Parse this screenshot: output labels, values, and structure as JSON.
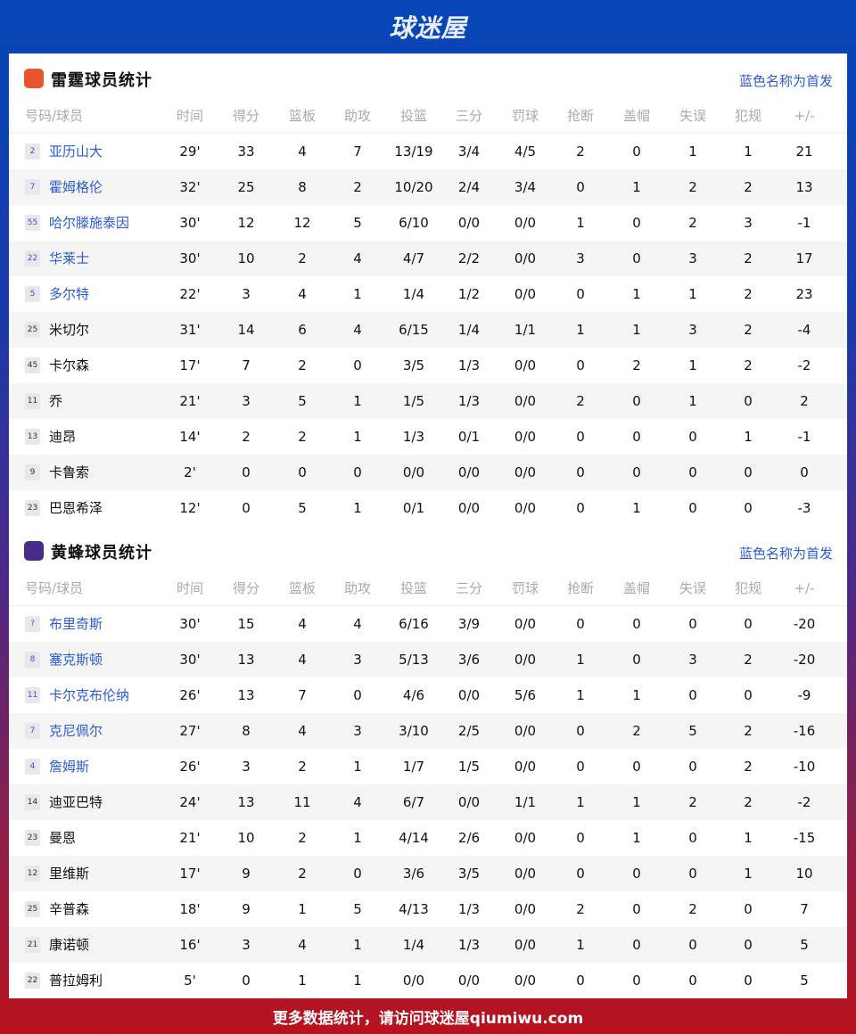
{
  "brand": "球迷屋",
  "footer": "更多数据统计，请访问球迷屋qiumiwu.com",
  "colors": {
    "starter": "#2a5ad8",
    "okc_logo": "#e8552a",
    "cha_logo": "#4a2a8a"
  },
  "columns": [
    "号码/球员",
    "时间",
    "得分",
    "篮板",
    "助攻",
    "投篮",
    "三分",
    "罚球",
    "抢断",
    "盖帽",
    "失误",
    "犯规",
    "+/-"
  ],
  "teams": [
    {
      "title": "雷霆球员统计",
      "note": "蓝色名称为首发",
      "logo": "OKC",
      "players": [
        {
          "no": "2",
          "name": "亚历山大",
          "starter": true,
          "stats": [
            "29'",
            "33",
            "4",
            "7",
            "13/19",
            "3/4",
            "4/5",
            "2",
            "0",
            "1",
            "1",
            "21"
          ]
        },
        {
          "no": "7",
          "name": "霍姆格伦",
          "starter": true,
          "stats": [
            "32'",
            "25",
            "8",
            "2",
            "10/20",
            "2/4",
            "3/4",
            "0",
            "1",
            "2",
            "2",
            "13"
          ]
        },
        {
          "no": "55",
          "name": "哈尔滕施泰因",
          "starter": true,
          "stats": [
            "30'",
            "12",
            "12",
            "5",
            "6/10",
            "0/0",
            "0/0",
            "1",
            "0",
            "2",
            "3",
            "-1"
          ]
        },
        {
          "no": "22",
          "name": "华莱士",
          "starter": true,
          "stats": [
            "30'",
            "10",
            "2",
            "4",
            "4/7",
            "2/2",
            "0/0",
            "3",
            "0",
            "3",
            "2",
            "17"
          ]
        },
        {
          "no": "5",
          "name": "多尔特",
          "starter": true,
          "stats": [
            "22'",
            "3",
            "4",
            "1",
            "1/4",
            "1/2",
            "0/0",
            "0",
            "1",
            "1",
            "2",
            "23"
          ]
        },
        {
          "no": "25",
          "name": "米切尔",
          "starter": false,
          "stats": [
            "31'",
            "14",
            "6",
            "4",
            "6/15",
            "1/4",
            "1/1",
            "1",
            "1",
            "3",
            "2",
            "-4"
          ]
        },
        {
          "no": "45",
          "name": "卡尔森",
          "starter": false,
          "stats": [
            "17'",
            "7",
            "2",
            "0",
            "3/5",
            "1/3",
            "0/0",
            "0",
            "2",
            "1",
            "2",
            "-2"
          ]
        },
        {
          "no": "11",
          "name": "乔",
          "starter": false,
          "stats": [
            "21'",
            "3",
            "5",
            "1",
            "1/5",
            "1/3",
            "0/0",
            "2",
            "0",
            "1",
            "0",
            "2"
          ]
        },
        {
          "no": "13",
          "name": "迪昂",
          "starter": false,
          "stats": [
            "14'",
            "2",
            "2",
            "1",
            "1/3",
            "0/1",
            "0/0",
            "0",
            "0",
            "0",
            "1",
            "-1"
          ]
        },
        {
          "no": "9",
          "name": "卡鲁索",
          "starter": false,
          "stats": [
            "2'",
            "0",
            "0",
            "0",
            "0/0",
            "0/0",
            "0/0",
            "0",
            "0",
            "0",
            "0",
            "0"
          ]
        },
        {
          "no": "23",
          "name": "巴恩希泽",
          "starter": false,
          "stats": [
            "12'",
            "0",
            "5",
            "1",
            "0/1",
            "0/0",
            "0/0",
            "0",
            "1",
            "0",
            "0",
            "-3"
          ]
        }
      ]
    },
    {
      "title": "黄蜂球员统计",
      "note": "蓝色名称为首发",
      "logo": "HORNETS",
      "players": [
        {
          "no": "?",
          "name": "布里奇斯",
          "starter": true,
          "stats": [
            "30'",
            "15",
            "4",
            "4",
            "6/16",
            "3/9",
            "0/0",
            "0",
            "0",
            "0",
            "0",
            "-20"
          ]
        },
        {
          "no": "8",
          "name": "塞克斯顿",
          "starter": true,
          "stats": [
            "30'",
            "13",
            "4",
            "3",
            "5/13",
            "3/6",
            "0/0",
            "1",
            "0",
            "3",
            "2",
            "-20"
          ]
        },
        {
          "no": "11",
          "name": "卡尔克布伦纳",
          "starter": true,
          "stats": [
            "26'",
            "13",
            "7",
            "0",
            "4/6",
            "0/0",
            "5/6",
            "1",
            "1",
            "0",
            "0",
            "-9"
          ]
        },
        {
          "no": "7",
          "name": "克尼佩尔",
          "starter": true,
          "stats": [
            "27'",
            "8",
            "4",
            "3",
            "3/10",
            "2/5",
            "0/0",
            "0",
            "2",
            "5",
            "2",
            "-16"
          ]
        },
        {
          "no": "4",
          "name": "詹姆斯",
          "starter": true,
          "stats": [
            "26'",
            "3",
            "2",
            "1",
            "1/7",
            "1/5",
            "0/0",
            "0",
            "0",
            "0",
            "2",
            "-10"
          ]
        },
        {
          "no": "14",
          "name": "迪亚巴特",
          "starter": false,
          "stats": [
            "24'",
            "13",
            "11",
            "4",
            "6/7",
            "0/0",
            "1/1",
            "1",
            "1",
            "2",
            "2",
            "-2"
          ]
        },
        {
          "no": "23",
          "name": "曼恩",
          "starter": false,
          "stats": [
            "21'",
            "10",
            "2",
            "1",
            "4/14",
            "2/6",
            "0/0",
            "0",
            "1",
            "0",
            "1",
            "-15"
          ]
        },
        {
          "no": "12",
          "name": "里维斯",
          "starter": false,
          "stats": [
            "17'",
            "9",
            "2",
            "0",
            "3/6",
            "3/5",
            "0/0",
            "0",
            "0",
            "0",
            "1",
            "10"
          ]
        },
        {
          "no": "25",
          "name": "辛普森",
          "starter": false,
          "stats": [
            "18'",
            "9",
            "1",
            "5",
            "4/13",
            "1/3",
            "0/0",
            "2",
            "0",
            "2",
            "0",
            "7"
          ]
        },
        {
          "no": "21",
          "name": "康诺顿",
          "starter": false,
          "stats": [
            "16'",
            "3",
            "4",
            "1",
            "1/4",
            "1/3",
            "0/0",
            "1",
            "0",
            "0",
            "0",
            "5"
          ]
        },
        {
          "no": "22",
          "name": "普拉姆利",
          "starter": false,
          "stats": [
            "5'",
            "0",
            "1",
            "1",
            "0/0",
            "0/0",
            "0/0",
            "0",
            "0",
            "0",
            "0",
            "5"
          ]
        }
      ]
    }
  ]
}
